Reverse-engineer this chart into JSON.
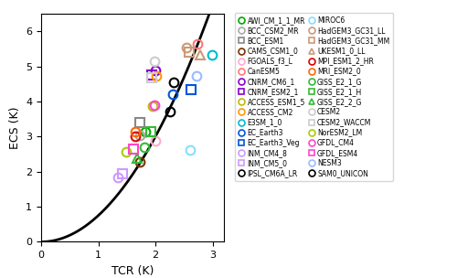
{
  "models": [
    {
      "name": "AWI_CM_1_1_MR",
      "tcr": 1.83,
      "ecs": 3.15,
      "color": "#00aa00",
      "marker": "o"
    },
    {
      "name": "BCC_CSM2_MR",
      "tcr": 1.72,
      "ecs": 3.04,
      "color": "#aaaaaa",
      "marker": "o"
    },
    {
      "name": "BCC_ESM1",
      "tcr": 1.73,
      "ecs": 3.41,
      "color": "#888888",
      "marker": "s"
    },
    {
      "name": "CAMS_CSM1_0",
      "tcr": 1.72,
      "ecs": 2.28,
      "color": "#7B3300",
      "marker": "o"
    },
    {
      "name": "FGOALS_f3_L",
      "tcr": 2.0,
      "ecs": 2.87,
      "color": "#ffaacc",
      "marker": "o"
    },
    {
      "name": "CanESM5",
      "tcr": 2.74,
      "ecs": 5.65,
      "color": "#ff7777",
      "marker": "o"
    },
    {
      "name": "CNRM_CM6_1",
      "tcr": 2.0,
      "ecs": 4.9,
      "color": "#8800cc",
      "marker": "o"
    },
    {
      "name": "CNRM_ESM2_1",
      "tcr": 1.94,
      "ecs": 4.76,
      "color": "#8800cc",
      "marker": "s"
    },
    {
      "name": "ACCESS_ESM1_5",
      "tcr": 1.95,
      "ecs": 3.88,
      "color": "#bbbb00",
      "marker": "o"
    },
    {
      "name": "ACCESS_CM2",
      "tcr": 2.02,
      "ecs": 4.72,
      "color": "#ff9900",
      "marker": "o"
    },
    {
      "name": "E3SM_1_0",
      "tcr": 2.99,
      "ecs": 5.32,
      "color": "#00bbcc",
      "marker": "o"
    },
    {
      "name": "EC_Earth3",
      "tcr": 2.31,
      "ecs": 4.22,
      "color": "#0055dd",
      "marker": "o"
    },
    {
      "name": "EC_Earth3_Veg",
      "tcr": 2.62,
      "ecs": 4.35,
      "color": "#0055dd",
      "marker": "s"
    },
    {
      "name": "INM_CM4_8",
      "tcr": 1.34,
      "ecs": 1.85,
      "color": "#cc99ff",
      "marker": "o"
    },
    {
      "name": "INM_CM5_0",
      "tcr": 1.42,
      "ecs": 1.93,
      "color": "#cc99ff",
      "marker": "s"
    },
    {
      "name": "IPSL_CM6A_LR",
      "tcr": 2.32,
      "ecs": 4.56,
      "color": "#000000",
      "marker": "o"
    },
    {
      "name": "MIROC6",
      "tcr": 2.61,
      "ecs": 2.61,
      "color": "#88ddff",
      "marker": "o"
    },
    {
      "name": "HadGEM3_GC31_LL",
      "tcr": 2.55,
      "ecs": 5.55,
      "color": "#cc9977",
      "marker": "o"
    },
    {
      "name": "HadGEM3_GC31_MM",
      "tcr": 2.59,
      "ecs": 5.42,
      "color": "#cc9977",
      "marker": "s"
    },
    {
      "name": "UKESM1_0_LL",
      "tcr": 2.79,
      "ecs": 5.34,
      "color": "#cc9977",
      "marker": "^"
    },
    {
      "name": "MPI_ESM1_2_HR",
      "tcr": 1.65,
      "ecs": 3.0,
      "color": "#dd0000",
      "marker": "o"
    },
    {
      "name": "MRI_ESM2_0",
      "tcr": 1.64,
      "ecs": 3.15,
      "color": "#ff6600",
      "marker": "o"
    },
    {
      "name": "GISS_E2_1_G",
      "tcr": 1.8,
      "ecs": 2.71,
      "color": "#33bb33",
      "marker": "o"
    },
    {
      "name": "GISS_E2_1_H",
      "tcr": 1.92,
      "ecs": 3.15,
      "color": "#33bb33",
      "marker": "s"
    },
    {
      "name": "GISS_E2_2_G",
      "tcr": 1.68,
      "ecs": 2.38,
      "color": "#33bb33",
      "marker": "^"
    },
    {
      "name": "CESM2",
      "tcr": 1.98,
      "ecs": 5.16,
      "color": "#cccccc",
      "marker": "o"
    },
    {
      "name": "CESM2_WACCM",
      "tcr": 1.93,
      "ecs": 4.68,
      "color": "#cccccc",
      "marker": "s"
    },
    {
      "name": "NorESM2_LM",
      "tcr": 1.48,
      "ecs": 2.56,
      "color": "#aacc00",
      "marker": "o"
    },
    {
      "name": "GFDL_CM4",
      "tcr": 1.99,
      "ecs": 3.89,
      "color": "#ff44cc",
      "marker": "o"
    },
    {
      "name": "GFDL_ESM4",
      "tcr": 1.61,
      "ecs": 2.65,
      "color": "#ff44cc",
      "marker": "s"
    },
    {
      "name": "NESM3",
      "tcr": 2.72,
      "ecs": 4.72,
      "color": "#99bbff",
      "marker": "o"
    },
    {
      "name": "SAM0_UNICON",
      "tcr": 2.26,
      "ecs": 3.72,
      "color": "#000000",
      "marker": "o"
    }
  ],
  "legend_col1": [
    [
      "AWI_CM_1_1_MR",
      "#00aa00",
      "o"
    ],
    [
      "BCC_CSM2_MR",
      "#aaaaaa",
      "o"
    ],
    [
      "BCC_ESM1",
      "#888888",
      "s"
    ],
    [
      "CAMS_CSM1_0",
      "#7B3300",
      "o"
    ],
    [
      "FGOALS_f3_L",
      "#ffaacc",
      "o"
    ],
    [
      "CanESM5",
      "#ff7777",
      "o"
    ],
    [
      "CNRM_CM6_1",
      "#8800cc",
      "o"
    ],
    [
      "CNRM_ESM2_1",
      "#8800cc",
      "s"
    ],
    [
      "ACCESS_ESM1_5",
      "#bbbb00",
      "o"
    ],
    [
      "ACCESS_CM2",
      "#ff9900",
      "o"
    ],
    [
      "E3SM_1_0",
      "#00bbcc",
      "o"
    ],
    [
      "EC_Earth3",
      "#0055dd",
      "o"
    ],
    [
      "EC_Earth3_Veg",
      "#0055dd",
      "s"
    ],
    [
      "INM_CM4_8",
      "#cc99ff",
      "o"
    ],
    [
      "INM_CM5_0",
      "#cc99ff",
      "s"
    ],
    [
      "IPSL_CM6A_LR",
      "#000000",
      "o"
    ]
  ],
  "legend_col2": [
    [
      "MIROC6",
      "#88ddff",
      "o"
    ],
    [
      "HadGEM3_GC31_LL",
      "#cc9977",
      "o"
    ],
    [
      "HadGEM3_GC31_MM",
      "#cc9977",
      "s"
    ],
    [
      "UKESM1_0_LL",
      "#cc9977",
      "^"
    ],
    [
      "MPI_ESM1_2_HR",
      "#dd0000",
      "o"
    ],
    [
      "MRI_ESM2_0",
      "#ff6600",
      "o"
    ],
    [
      "GISS_E2_1_G",
      "#33bb33",
      "o"
    ],
    [
      "GISS_E2_1_H",
      "#33bb33",
      "s"
    ],
    [
      "GISS_E2_2_G",
      "#33bb33",
      "^"
    ],
    [
      "CESM2",
      "#cccccc",
      "o"
    ],
    [
      "CESM2_WACCM",
      "#cccccc",
      "s"
    ],
    [
      "NorESM2_LM",
      "#aacc00",
      "o"
    ],
    [
      "GFDL_CM4",
      "#ff44cc",
      "o"
    ],
    [
      "GFDL_ESM4",
      "#ff44cc",
      "s"
    ],
    [
      "NESM3",
      "#99bbff",
      "o"
    ],
    [
      "SAM0_UNICON",
      "#000000",
      "o"
    ]
  ],
  "xlabel": "TCR (K)",
  "ylabel": "ECS (K)",
  "xlim": [
    0,
    3.2
  ],
  "ylim": [
    0,
    6.5
  ],
  "xticks": [
    0,
    1,
    2,
    3
  ],
  "yticks": [
    0,
    1,
    2,
    3,
    4,
    5,
    6
  ],
  "curve_coeff": 0.75,
  "curve_power": 2.0,
  "figsize": [
    5.0,
    3.04
  ],
  "dpi": 100
}
